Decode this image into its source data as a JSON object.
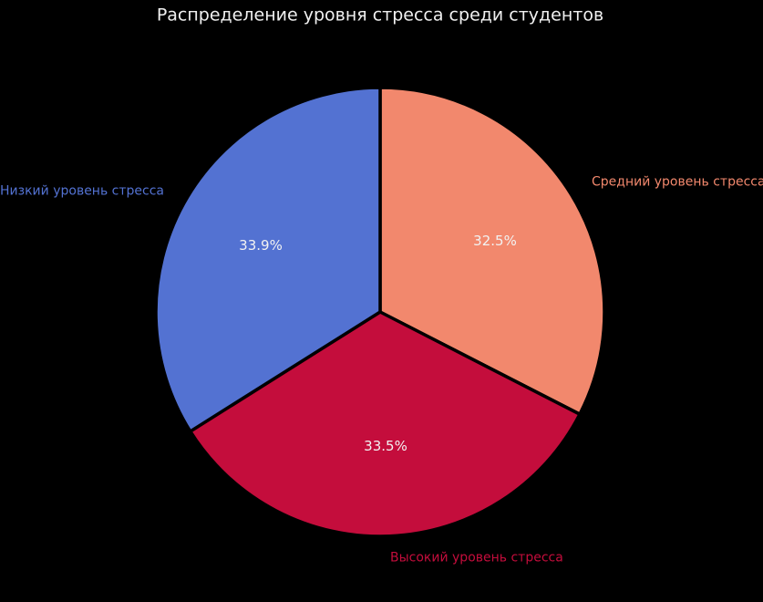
{
  "title": "Распределение уровня стресса среди студентов",
  "colors": {
    "background": "#000000",
    "title_text": "#F0F0F0",
    "percent_text": "#F2F2F2",
    "edge": "#000000",
    "low_stress": "#5372D2",
    "medium_stress": "#F2886D",
    "high_stress": "#C40D3C"
  },
  "chart_data": {
    "type": "pie",
    "title": "Распределение уровня стресса среди студентов",
    "categories": [
      "Низкий уровень стресса",
      "Средний уровень стресса",
      "Высокий уровень стресса"
    ],
    "values": [
      33.9,
      32.5,
      33.5
    ],
    "values_unit": "%",
    "direction": "clockwise",
    "start_angle": "12-oclock",
    "legend": "none",
    "labels_position": "outside",
    "percent_position": "inside",
    "slices": [
      {
        "id": "medium",
        "label": "Средний уровень стресса",
        "value": 32.5,
        "pct_label": "32.5%",
        "color": "#F2886D"
      },
      {
        "id": "high",
        "label": "Высокий уровень стресса",
        "value": 33.5,
        "pct_label": "33.5%",
        "color": "#C40D3C"
      },
      {
        "id": "low",
        "label": "Низкий уровень стресса",
        "value": 33.9,
        "pct_label": "33.9%",
        "color": "#5372D2"
      }
    ]
  }
}
